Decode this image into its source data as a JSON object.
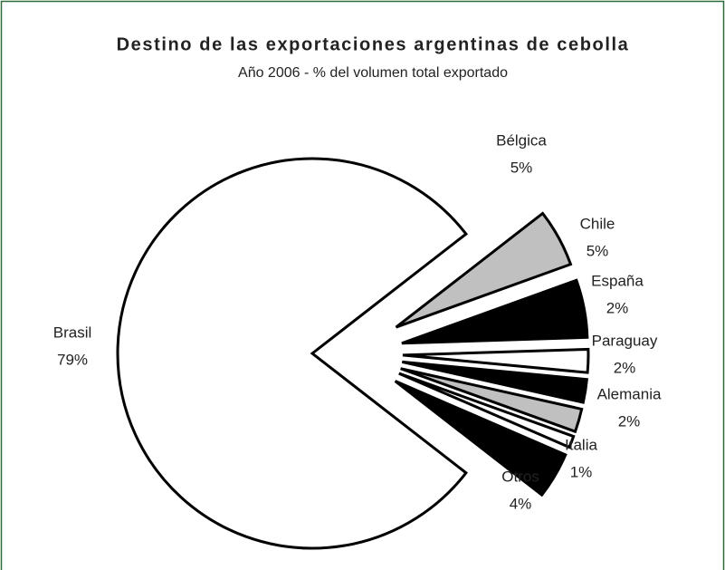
{
  "chart_data": {
    "type": "pie",
    "title": "Destino de las exportaciones argentinas de cebolla",
    "subtitle": "Año 2006 - % del volumen total exportado",
    "categories": [
      "Brasil",
      "Bélgica",
      "Chile",
      "España",
      "Paraguay",
      "Alemania",
      "Italia",
      "Otros"
    ],
    "values": [
      79,
      5,
      5,
      2,
      2,
      2,
      1,
      4
    ],
    "value_labels": [
      "79%",
      "5%",
      "5%",
      "2%",
      "2%",
      "2%",
      "1%",
      "4%"
    ],
    "colors": [
      "#ffffff",
      "#c0c0c0",
      "#000000",
      "#ffffff",
      "#000000",
      "#c0c0c0",
      "#ffffff",
      "#000000"
    ]
  }
}
